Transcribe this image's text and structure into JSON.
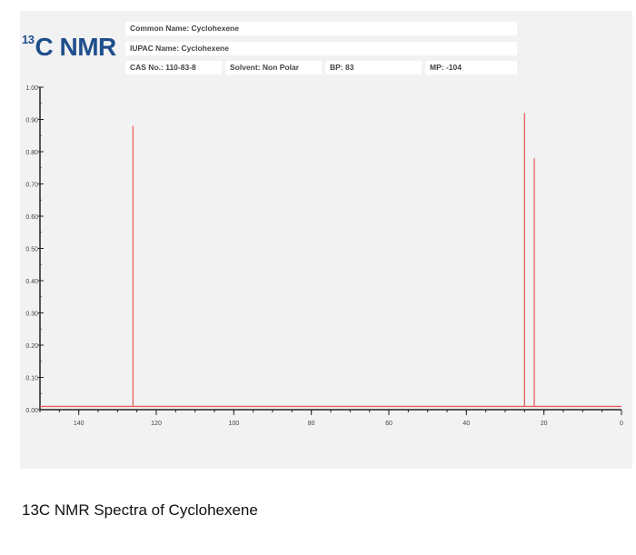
{
  "header": {
    "logo_sup": "13",
    "logo_text": "C NMR",
    "common_name": "Common Name: Cyclohexene",
    "iupac_name": "IUPAC Name: Cyclohexene",
    "cas_no": "CAS No.: 110-83-8",
    "solvent": "Solvent: Non Polar",
    "bp": "BP: 83",
    "mp": "MP: -104"
  },
  "chart_data": {
    "type": "line",
    "title": "",
    "xlabel": "",
    "ylabel": "",
    "xlim": [
      150,
      0
    ],
    "ylim": [
      0,
      1
    ],
    "x_ticks": [
      140,
      120,
      100,
      80,
      60,
      40,
      20,
      0
    ],
    "y_ticks": [
      "0.00",
      "0.10",
      "0.20",
      "0.30",
      "0.40",
      "0.50",
      "0.60",
      "0.70",
      "0.80",
      "0.90",
      "1.00"
    ],
    "baseline": 0.01,
    "grid": false,
    "line_color": "#e8605c",
    "peaks": [
      {
        "shift": 126,
        "intensity": 0.88
      },
      {
        "shift": 25,
        "intensity": 0.92
      },
      {
        "shift": 22.5,
        "intensity": 0.78
      }
    ]
  },
  "caption": "13C NMR Spectra of Cyclohexene"
}
